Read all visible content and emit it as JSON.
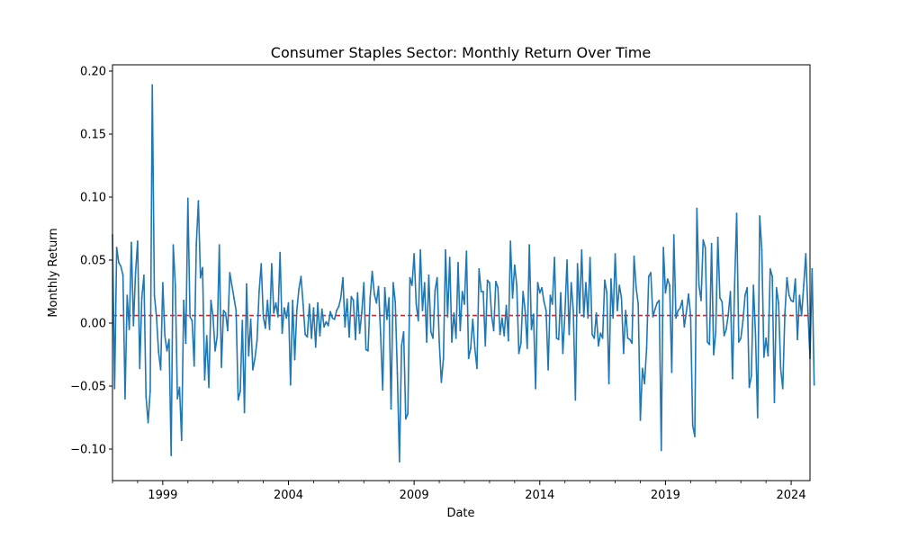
{
  "chart_data": {
    "type": "line",
    "title": "Consumer Staples Sector: Monthly Return Over Time",
    "xlabel": "Date",
    "ylabel": "Monthly Return",
    "xlim": [
      "1997-01",
      "2024-10"
    ],
    "ylim": [
      -0.125,
      0.205
    ],
    "x_ticks": [
      "1999",
      "2004",
      "2009",
      "2014",
      "2019",
      "2024"
    ],
    "y_ticks": [
      -0.1,
      -0.05,
      0.0,
      0.05,
      0.1,
      0.15,
      0.2
    ],
    "y_tick_labels": [
      "−0.10",
      "−0.05",
      "0.00",
      "0.05",
      "0.10",
      "0.15",
      "0.20"
    ],
    "grid": false,
    "reference_line": {
      "value": 0.006,
      "style": "dashed",
      "color": "#d62728"
    },
    "colors": {
      "series": "#1f77b4"
    },
    "series": [
      {
        "x_start": "1997-01",
        "frequency": "monthly",
        "values": [
          0.07,
          -0.052,
          0.06,
          0.048,
          0.045,
          0.038,
          -0.06,
          0.022,
          -0.005,
          0.064,
          -0.002,
          0.04,
          0.065,
          -0.036,
          0.02,
          0.038,
          -0.058,
          -0.079,
          -0.054,
          0.189,
          0.022,
          0.005,
          -0.023,
          -0.037,
          0.032,
          -0.01,
          -0.022,
          -0.013,
          -0.105,
          0.062,
          0.03,
          -0.06,
          -0.051,
          -0.093,
          0.018,
          -0.016,
          0.099,
          0.005,
          0.002,
          -0.034,
          0.062,
          0.097,
          0.036,
          0.044,
          -0.045,
          -0.01,
          -0.051,
          0.018,
          0.005,
          -0.022,
          -0.01,
          0.062,
          -0.035,
          0.01,
          0.008,
          -0.006,
          0.04,
          0.03,
          0.02,
          0.01,
          -0.061,
          -0.054,
          0.002,
          -0.071,
          0.031,
          -0.026,
          0.003,
          -0.037,
          -0.028,
          -0.014,
          0.025,
          0.047,
          0.005,
          -0.004,
          0.018,
          -0.005,
          0.047,
          0.008,
          0.016,
          0.005,
          0.056,
          -0.008,
          0.012,
          0.004,
          0.016,
          -0.049,
          0.018,
          -0.029,
          0.01,
          0.027,
          0.037,
          0.015,
          -0.009,
          -0.011,
          0.015,
          -0.012,
          0.012,
          -0.019,
          0.016,
          -0.01,
          0.011,
          -0.003,
          0.001,
          -0.002,
          0.009,
          0.004,
          0.003,
          0.01,
          0.013,
          0.02,
          0.036,
          -0.003,
          0.019,
          -0.011,
          0.021,
          0.018,
          -0.013,
          0.024,
          -0.008,
          0.008,
          0.032,
          -0.021,
          -0.022,
          0.02,
          0.041,
          0.023,
          0.016,
          0.029,
          -0.009,
          -0.053,
          0.028,
          0.003,
          0.02,
          -0.068,
          0.032,
          0.017,
          -0.04,
          -0.11,
          -0.018,
          -0.007,
          -0.076,
          -0.072,
          0.036,
          0.03,
          0.055,
          0.015,
          0.002,
          0.058,
          0.01,
          0.032,
          -0.015,
          0.038,
          -0.007,
          -0.012,
          0.026,
          0.036,
          -0.015,
          -0.047,
          -0.028,
          0.058,
          0.005,
          0.052,
          -0.015,
          0.008,
          -0.012,
          0.048,
          -0.006,
          0.025,
          0.015,
          0.057,
          -0.028,
          -0.02,
          0.003,
          -0.02,
          -0.036,
          0.043,
          0.025,
          0.025,
          -0.018,
          0.034,
          0.032,
          0.006,
          -0.006,
          0.033,
          0.028,
          -0.009,
          0.004,
          -0.01,
          0.014,
          -0.014,
          0.065,
          0.02,
          0.046,
          0.03,
          -0.024,
          -0.016,
          0.025,
          0.01,
          -0.02,
          0.062,
          -0.005,
          0.007,
          -0.052,
          0.032,
          0.024,
          0.028,
          0.017,
          0.01,
          -0.037,
          0.022,
          0.015,
          0.052,
          -0.012,
          -0.013,
          0.024,
          -0.024,
          0.008,
          0.05,
          -0.009,
          0.032,
          0.01,
          -0.061,
          0.047,
          0.008,
          0.058,
          0.005,
          0.032,
          0.004,
          0.052,
          -0.009,
          -0.012,
          0.008,
          -0.018,
          -0.008,
          -0.012,
          0.034,
          0.024,
          -0.048,
          0.035,
          0.004,
          0.055,
          0.01,
          0.03,
          0.02,
          -0.024,
          0.01,
          -0.012,
          -0.013,
          -0.016,
          0.053,
          0.028,
          0.015,
          -0.077,
          -0.036,
          -0.048,
          -0.02,
          0.037,
          0.04,
          0.005,
          0.011,
          0.016,
          0.018,
          -0.101,
          0.06,
          0.024,
          0.035,
          0.03,
          -0.039,
          0.07,
          0.004,
          0.01,
          0.012,
          0.018,
          -0.003,
          0.009,
          0.023,
          0.006,
          -0.081,
          -0.09,
          0.091,
          0.03,
          0.018,
          0.066,
          0.06,
          -0.015,
          -0.017,
          0.063,
          -0.025,
          -0.007,
          0.068,
          0.02,
          0.017,
          -0.01,
          -0.005,
          0.007,
          0.025,
          -0.044,
          0.03,
          0.087,
          -0.015,
          -0.012,
          0.002,
          0.022,
          0.028,
          -0.051,
          -0.042,
          0.03,
          -0.01,
          -0.075,
          0.085,
          0.058,
          -0.027,
          -0.012,
          -0.026,
          0.043,
          0.037,
          -0.063,
          0.028,
          0.016,
          -0.036,
          -0.052,
          0.007,
          0.036,
          0.022,
          0.018,
          0.017,
          0.035,
          -0.013,
          0.022,
          0.006,
          0.03,
          0.055,
          0.01,
          -0.028,
          0.043,
          -0.049
        ]
      }
    ]
  }
}
